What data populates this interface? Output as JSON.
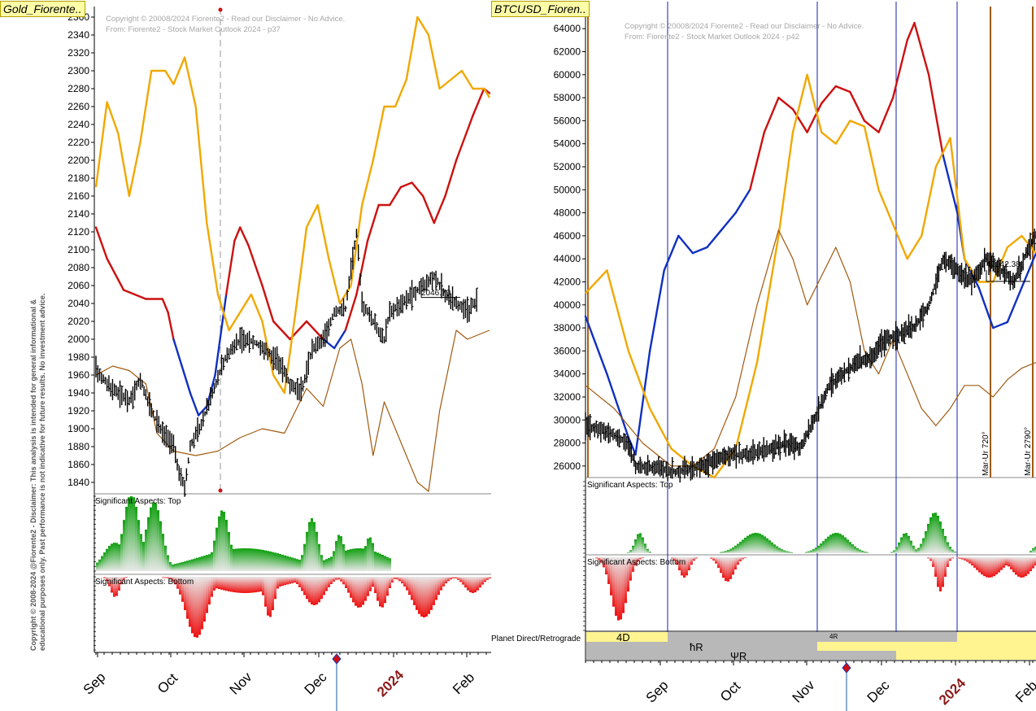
{
  "left_panel": {
    "title": "Gold_Fiorente..",
    "copyright_line1": "Copyright © 20008/2024 Fiorente2 - Read our Disclaimer - No Advice.",
    "copyright_line2": "From: Fiorente2 - Stock Market Outlook 2024 - p37",
    "disclaimer": "Copyright © 2008-2024 @Fiorente2 - Disclaimer: This analysis is intended for general informational & educational purposes only. Past performance is not indicative for future results. No investment advice.",
    "last_price_label": "2046.70",
    "top_pane_label": "Significant Aspects: Top",
    "bottom_pane_label": "Significant Aspects: Bottom",
    "x_labels": [
      "Sep",
      "Oct",
      "Nov",
      "Dec",
      "2024",
      "Feb"
    ]
  },
  "right_panel": {
    "title": "BTCUSD_Fioren..",
    "copyright_line1": "Copyright © 20008/2024 Fiorente2 - Read our Disclaimer - No Advice.",
    "copyright_line2": "From: Fiorente2 - Stock Market Outlook 2024 - p42",
    "last_price_label": "42042.38",
    "top_pane_label": "Significant Aspects: Top",
    "bottom_pane_label": "Significant Aspects: Bottom",
    "planet_label": "Planet Direct/Retrograde",
    "planet_rows": [
      "4D",
      "4R",
      "ħR",
      "ΨR"
    ],
    "vertical_annotations": [
      "Mar-Ur 720°",
      "Mar-Ur 2790°"
    ],
    "x_labels": [
      "Sep",
      "Oct",
      "Nov",
      "Dec",
      "2024",
      "Feb"
    ]
  },
  "colors": {
    "up_red": "#cc1010",
    "down_blue": "#1030c0",
    "turn_green": "#109010",
    "orange": "#f0a800",
    "brown": "#a05a10",
    "top_area": "#20a020",
    "bottom_area": "#e82020",
    "year_label": "#8b1a1a"
  },
  "chart_data": [
    {
      "type": "line",
      "title": "Gold_Fiorente..",
      "xlabel": "",
      "ylabel": "",
      "ylim": [
        1830,
        2370
      ],
      "yticks": [
        1840,
        1860,
        1880,
        1900,
        1920,
        1940,
        1960,
        1980,
        2000,
        2020,
        2040,
        2060,
        2080,
        2100,
        2120,
        2140,
        2160,
        2180,
        2200,
        2220,
        2240,
        2260,
        2280,
        2300,
        2320,
        2340,
        2360
      ],
      "last_price": 2046.7,
      "price_path": [
        [
          0,
          1965
        ],
        [
          4,
          1950
        ],
        [
          8,
          1940
        ],
        [
          12,
          1930
        ],
        [
          16,
          1955
        ],
        [
          20,
          1920
        ],
        [
          24,
          1895
        ],
        [
          28,
          1880
        ],
        [
          30,
          1850
        ],
        [
          32,
          1835
        ],
        [
          34,
          1880
        ],
        [
          38,
          1905
        ],
        [
          42,
          1940
        ],
        [
          46,
          1975
        ],
        [
          50,
          1995
        ],
        [
          54,
          2000
        ],
        [
          58,
          1995
        ],
        [
          62,
          1985
        ],
        [
          66,
          1975
        ],
        [
          70,
          1950
        ],
        [
          74,
          1940
        ],
        [
          78,
          1990
        ],
        [
          82,
          2000
        ],
        [
          86,
          2030
        ],
        [
          90,
          2035
        ],
        [
          94,
          2120
        ],
        [
          96,
          2040
        ],
        [
          100,
          2020
        ],
        [
          104,
          2000
        ],
        [
          106,
          2030
        ],
        [
          110,
          2040
        ],
        [
          114,
          2050
        ],
        [
          118,
          2060
        ],
        [
          122,
          2070
        ],
        [
          126,
          2050
        ],
        [
          130,
          2040
        ],
        [
          134,
          2030
        ],
        [
          138,
          2046
        ]
      ],
      "series": [
        {
          "name": "",
          "values": [
            [
              0,
              2125
            ],
            [
              4,
              2090
            ],
            [
              10,
              2055
            ],
            [
              18,
              2045
            ],
            [
              24,
              2045
            ],
            [
              26,
              2030
            ],
            [
              28,
              2000
            ],
            [
              31,
              1970
            ],
            [
              34,
              1940
            ],
            [
              37,
              1915
            ],
            [
              40,
              1925
            ],
            [
              43,
              1960
            ],
            [
              47,
              2050
            ],
            [
              50,
              2110
            ],
            [
              52,
              2125
            ],
            [
              55,
              2105
            ],
            [
              60,
              2060
            ],
            [
              64,
              2020
            ],
            [
              70,
              2000
            ],
            [
              76,
              2020
            ],
            [
              82,
              2000
            ],
            [
              86,
              1990
            ],
            [
              90,
              2010
            ],
            [
              94,
              2050
            ],
            [
              98,
              2110
            ],
            [
              102,
              2150
            ],
            [
              106,
              2150
            ],
            [
              110,
              2170
            ],
            [
              114,
              2175
            ],
            [
              118,
              2160
            ],
            [
              122,
              2130
            ],
            [
              126,
              2160
            ],
            [
              130,
              2200
            ],
            [
              136,
              2250
            ],
            [
              140,
              2280
            ],
            [
              142,
              2275
            ]
          ]
        },
        {
          "name": "",
          "values": [
            [
              0,
              2170
            ],
            [
              4,
              2265
            ],
            [
              8,
              2230
            ],
            [
              12,
              2160
            ],
            [
              16,
              2220
            ],
            [
              20,
              2300
            ],
            [
              25,
              2300
            ],
            [
              28,
              2285
            ],
            [
              32,
              2315
            ],
            [
              36,
              2260
            ],
            [
              40,
              2130
            ],
            [
              44,
              2050
            ],
            [
              48,
              2010
            ],
            [
              52,
              2030
            ],
            [
              56,
              2050
            ],
            [
              60,
              2020
            ],
            [
              64,
              1960
            ],
            [
              68,
              1940
            ],
            [
              72,
              2030
            ],
            [
              76,
              2125
            ],
            [
              80,
              2150
            ],
            [
              84,
              2090
            ],
            [
              88,
              2040
            ],
            [
              92,
              2060
            ],
            [
              96,
              2150
            ],
            [
              100,
              2200
            ],
            [
              104,
              2260
            ],
            [
              108,
              2260
            ],
            [
              112,
              2290
            ],
            [
              116,
              2360
            ],
            [
              120,
              2340
            ],
            [
              124,
              2280
            ],
            [
              128,
              2290
            ],
            [
              132,
              2300
            ],
            [
              136,
              2280
            ],
            [
              140,
              2280
            ],
            [
              142,
              2270
            ]
          ]
        },
        {
          "name": "",
          "values": [
            [
              0,
              1960
            ],
            [
              6,
              1970
            ],
            [
              12,
              1965
            ],
            [
              18,
              1950
            ],
            [
              22,
              1895
            ],
            [
              28,
              1875
            ],
            [
              36,
              1870
            ],
            [
              44,
              1875
            ],
            [
              52,
              1890
            ],
            [
              60,
              1900
            ],
            [
              68,
              1895
            ],
            [
              76,
              1945
            ],
            [
              82,
              1925
            ],
            [
              88,
              1990
            ],
            [
              92,
              2000
            ],
            [
              96,
              1950
            ],
            [
              100,
              1870
            ],
            [
              104,
              1930
            ],
            [
              108,
              1900
            ],
            [
              112,
              1870
            ],
            [
              116,
              1840
            ],
            [
              120,
              1830
            ],
            [
              124,
              1920
            ],
            [
              130,
              2010
            ],
            [
              134,
              2000
            ],
            [
              142,
              2010
            ]
          ]
        }
      ]
    },
    {
      "type": "line",
      "title": "BTCUSD_Fioren..",
      "xlabel": "",
      "ylabel": "",
      "ylim": [
        25000,
        65500
      ],
      "yticks": [
        26000,
        28000,
        30000,
        32000,
        34000,
        36000,
        38000,
        40000,
        42000,
        44000,
        46000,
        48000,
        50000,
        52000,
        54000,
        56000,
        58000,
        60000,
        62000,
        64000
      ],
      "last_price": 42042.38,
      "price_path": [
        [
          0,
          29500
        ],
        [
          6,
          29000
        ],
        [
          12,
          28000
        ],
        [
          14,
          26000
        ],
        [
          20,
          25800
        ],
        [
          26,
          25500
        ],
        [
          32,
          26000
        ],
        [
          36,
          26500
        ],
        [
          40,
          27000
        ],
        [
          46,
          27000
        ],
        [
          52,
          27500
        ],
        [
          56,
          28000
        ],
        [
          60,
          27500
        ],
        [
          64,
          30000
        ],
        [
          68,
          33000
        ],
        [
          72,
          34000
        ],
        [
          76,
          35000
        ],
        [
          80,
          35500
        ],
        [
          84,
          37000
        ],
        [
          88,
          37500
        ],
        [
          92,
          38000
        ],
        [
          96,
          40000
        ],
        [
          100,
          44000
        ],
        [
          104,
          43000
        ],
        [
          108,
          42000
        ],
        [
          112,
          44000
        ],
        [
          116,
          43000
        ],
        [
          120,
          42000
        ],
        [
          124,
          45000
        ],
        [
          128,
          47000
        ],
        [
          130,
          44000
        ],
        [
          134,
          42042
        ]
      ],
      "series": [
        {
          "name": "",
          "values": [
            [
              0,
              39000
            ],
            [
              6,
              34000
            ],
            [
              12,
              28500
            ],
            [
              14,
              27000
            ],
            [
              18,
              36000
            ],
            [
              22,
              43000
            ],
            [
              26,
              46000
            ],
            [
              30,
              44500
            ],
            [
              34,
              45000
            ],
            [
              38,
              46500
            ],
            [
              42,
              48000
            ],
            [
              46,
              50000
            ],
            [
              50,
              55000
            ],
            [
              54,
              58000
            ],
            [
              58,
              57000
            ],
            [
              62,
              55000
            ],
            [
              66,
              57500
            ],
            [
              70,
              59000
            ],
            [
              74,
              58500
            ],
            [
              78,
              56000
            ],
            [
              82,
              55000
            ],
            [
              86,
              58000
            ],
            [
              90,
              63000
            ],
            [
              92,
              64500
            ],
            [
              96,
              60000
            ],
            [
              100,
              53000
            ],
            [
              104,
              48000
            ],
            [
              106,
              44000
            ],
            [
              110,
              41500
            ],
            [
              114,
              38000
            ],
            [
              118,
              38500
            ],
            [
              122,
              41500
            ],
            [
              126,
              44500
            ]
          ]
        },
        {
          "name": "",
          "values": [
            [
              0,
              41000
            ],
            [
              6,
              43000
            ],
            [
              12,
              36000
            ],
            [
              18,
              31000
            ],
            [
              24,
              27500
            ],
            [
              30,
              26000
            ],
            [
              36,
              25000
            ],
            [
              42,
              27500
            ],
            [
              48,
              35000
            ],
            [
              54,
              46000
            ],
            [
              58,
              55000
            ],
            [
              62,
              60000
            ],
            [
              66,
              55000
            ],
            [
              70,
              54000
            ],
            [
              74,
              56000
            ],
            [
              78,
              55500
            ],
            [
              82,
              50000
            ],
            [
              86,
              47000
            ],
            [
              90,
              44000
            ],
            [
              94,
              46000
            ],
            [
              98,
              52000
            ],
            [
              102,
              54500
            ],
            [
              106,
              44000
            ],
            [
              110,
              42000
            ],
            [
              114,
              42000
            ],
            [
              118,
              45000
            ],
            [
              122,
              46000
            ],
            [
              126,
              44500
            ]
          ]
        },
        {
          "name": "",
          "values": [
            [
              0,
              33000
            ],
            [
              8,
              31000
            ],
            [
              16,
              28000
            ],
            [
              24,
              26000
            ],
            [
              30,
              26000
            ],
            [
              36,
              27500
            ],
            [
              42,
              32000
            ],
            [
              48,
              40000
            ],
            [
              54,
              46500
            ],
            [
              58,
              44000
            ],
            [
              62,
              40000
            ],
            [
              66,
              42500
            ],
            [
              70,
              45000
            ],
            [
              74,
              42000
            ],
            [
              78,
              36000
            ],
            [
              82,
              34000
            ],
            [
              86,
              37000
            ],
            [
              90,
              34000
            ],
            [
              94,
              31000
            ],
            [
              98,
              29500
            ],
            [
              102,
              31000
            ],
            [
              106,
              33000
            ],
            [
              110,
              33000
            ],
            [
              114,
              32000
            ],
            [
              118,
              33500
            ],
            [
              122,
              34500
            ],
            [
              126,
              35000
            ]
          ]
        }
      ]
    }
  ]
}
